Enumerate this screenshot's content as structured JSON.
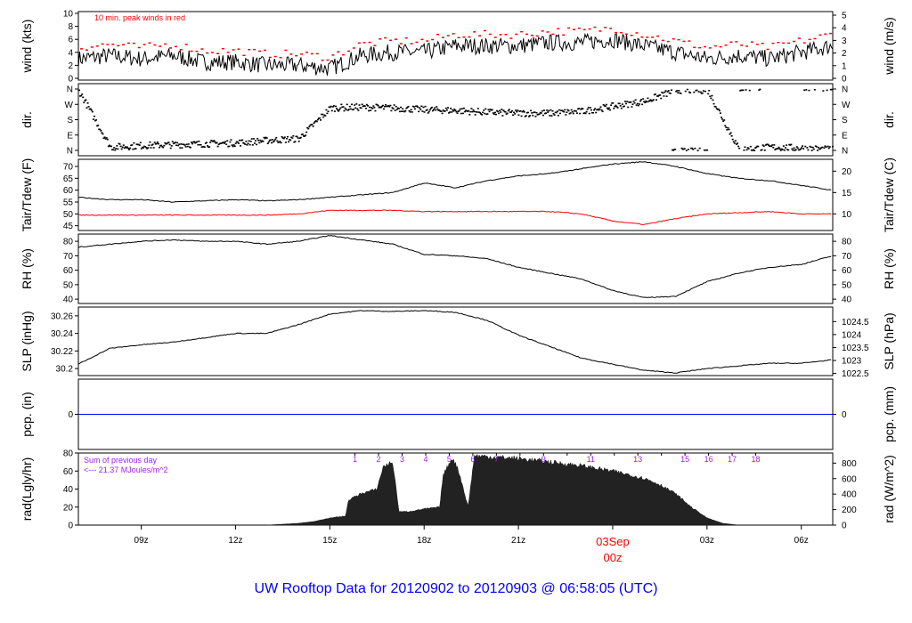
{
  "title": "UW Rooftop Data for 20120902  to  20120903 @ 06:58:05  (UTC)",
  "colors": {
    "line": "#000000",
    "peak": "#ff0000",
    "dew": "#ff0000",
    "pcp": "#0000ff",
    "rad_note": "#a020f0",
    "title": "#0000ff",
    "date_marker": "#ff0000"
  },
  "chart_data": [
    {
      "type": "line",
      "id": "wind",
      "ylabel": "wind (kts)",
      "ylabel_right": "wind (m/s)",
      "annotation": "10 min. peak winds in red",
      "ylim": [
        0,
        10
      ],
      "yticks": [
        0,
        2,
        4,
        6,
        8,
        10
      ],
      "yticks_right": [
        0,
        1,
        2,
        3,
        4,
        5
      ],
      "ylim_right": [
        0,
        5.14
      ],
      "x_hours": [
        7,
        8,
        9,
        10,
        11,
        12,
        13,
        14,
        15,
        16,
        17,
        18,
        19,
        20,
        21,
        22,
        23,
        24,
        25,
        26,
        27,
        28,
        29,
        30,
        31
      ],
      "series": [
        {
          "name": "wind",
          "values": [
            3,
            3.5,
            3,
            3.5,
            2.5,
            2.5,
            2,
            2,
            1.5,
            3.5,
            4,
            4,
            5,
            5,
            5,
            5.5,
            5.5,
            6,
            5,
            4,
            3,
            3.5,
            3,
            4,
            5
          ]
        }
      ],
      "peak_offset_kts": 1.5
    },
    {
      "type": "scatter",
      "id": "dir",
      "ylabel": "dir.",
      "ylabel_right": "dir.",
      "ylim": [
        0,
        360
      ],
      "yticks": [
        0,
        90,
        180,
        270,
        360
      ],
      "ytick_labels": [
        "N",
        "E",
        "S",
        "W",
        "N"
      ],
      "x_hours": [
        7,
        8,
        9,
        10,
        11,
        12,
        13,
        14,
        15,
        16,
        17,
        18,
        19,
        20,
        21,
        22,
        23,
        24,
        25,
        26,
        27,
        28,
        29,
        30,
        31
      ],
      "series": [
        {
          "name": "direction",
          "values": [
            350,
            20,
            30,
            35,
            40,
            45,
            60,
            70,
            250,
            255,
            250,
            240,
            235,
            225,
            220,
            220,
            230,
            260,
            290,
            355,
            355,
            5,
            20,
            15,
            5
          ]
        }
      ]
    },
    {
      "type": "line",
      "id": "temp",
      "ylabel": "Tair/Tdew (F)",
      "ylabel_right": "Tair/Tdew (C)",
      "ylim": [
        43,
        73
      ],
      "yticks": [
        45,
        50,
        55,
        60,
        65,
        70
      ],
      "yticks_right": [
        10,
        15,
        20
      ],
      "x_hours": [
        7,
        8,
        9,
        10,
        11,
        12,
        13,
        14,
        15,
        16,
        17,
        18,
        19,
        20,
        21,
        22,
        23,
        24,
        25,
        26,
        27,
        28,
        29,
        30,
        31
      ],
      "series": [
        {
          "name": "Tair",
          "values": [
            57,
            56,
            56,
            55,
            55.5,
            56,
            55.5,
            56,
            57,
            58,
            59,
            63,
            61,
            64,
            66,
            67,
            69,
            71,
            72,
            70,
            67,
            65,
            64,
            62,
            60
          ]
        },
        {
          "name": "Tdew",
          "values": [
            49.5,
            49.5,
            49.5,
            49.5,
            49.5,
            49.5,
            49.5,
            50,
            51.5,
            51.5,
            51.5,
            51,
            51,
            51,
            51,
            51,
            50,
            47,
            45.5,
            48,
            50,
            50.5,
            51,
            50,
            50
          ]
        }
      ]
    },
    {
      "type": "line",
      "id": "rh",
      "ylabel": "RH (%)",
      "ylabel_right": "RH (%)",
      "ylim": [
        37,
        85
      ],
      "yticks": [
        40,
        50,
        60,
        70,
        80
      ],
      "yticks_right": [
        40,
        50,
        60,
        70,
        80
      ],
      "x_hours": [
        7,
        8,
        9,
        10,
        11,
        12,
        13,
        14,
        15,
        16,
        17,
        18,
        19,
        20,
        21,
        22,
        23,
        24,
        25,
        26,
        27,
        28,
        29,
        30,
        31
      ],
      "series": [
        {
          "name": "RH",
          "values": [
            76,
            78,
            80,
            81,
            80,
            80,
            78,
            80,
            84,
            81,
            78,
            71,
            70,
            68,
            62,
            58,
            54,
            46,
            41,
            42,
            52,
            58,
            62,
            64,
            70
          ]
        }
      ]
    },
    {
      "type": "line",
      "id": "slp",
      "ylabel": "SLP (inHg)",
      "ylabel_right": "SLP (hPa)",
      "ylim": [
        30.192,
        30.27
      ],
      "yticks": [
        30.2,
        30.22,
        30.24,
        30.26
      ],
      "yticks_right": [
        1022.5,
        1023,
        1023.5,
        1024,
        1024.5
      ],
      "x_hours": [
        7,
        8,
        9,
        10,
        11,
        12,
        13,
        14,
        15,
        16,
        17,
        18,
        19,
        20,
        21,
        22,
        23,
        24,
        25,
        26,
        27,
        28,
        29,
        30,
        31
      ],
      "series": [
        {
          "name": "SLP",
          "values": [
            30.205,
            30.223,
            30.227,
            30.23,
            30.235,
            30.24,
            30.24,
            30.25,
            30.262,
            30.266,
            30.265,
            30.266,
            30.264,
            30.255,
            30.238,
            30.225,
            30.212,
            30.205,
            30.198,
            30.195,
            30.2,
            30.203,
            30.206,
            30.206,
            30.21
          ]
        }
      ]
    },
    {
      "type": "line",
      "id": "pcp",
      "ylabel": "pcp. (in)",
      "ylabel_right": "pcp. (mm)",
      "ylim": [
        -1,
        1
      ],
      "yticks": [
        0
      ],
      "yticks_right": [
        0
      ],
      "x_hours": [
        7,
        31
      ],
      "series": [
        {
          "name": "precip",
          "values": [
            0,
            0
          ]
        }
      ]
    },
    {
      "type": "area",
      "id": "rad",
      "ylabel": "rad(Lgly/hr)",
      "ylabel_right": "rad (W/m^2)",
      "ylim": [
        0,
        80
      ],
      "yticks": [
        0,
        20,
        40,
        60,
        80
      ],
      "yticks_right": [
        0,
        200,
        400,
        600,
        800
      ],
      "note_line1": "Sum of previous day",
      "note_line2": "<--- 21.37 MJoules/m^2",
      "hour_marks": [
        "1",
        "2",
        "3",
        "4",
        "5",
        "6",
        "7",
        "",
        "9",
        "",
        "11",
        "",
        "13",
        "",
        "15",
        "16",
        "17",
        "18"
      ],
      "x_hours": [
        13,
        14,
        14.5,
        15,
        15.5,
        15.6,
        16,
        16.5,
        16.7,
        17,
        17.2,
        17.5,
        18,
        18.5,
        18.6,
        18.9,
        19.1,
        19.4,
        19.6,
        20,
        21,
        22,
        23,
        24,
        25,
        25.5,
        26,
        26.5,
        27,
        27.5,
        28
      ],
      "series": [
        {
          "name": "radiation",
          "values": [
            0,
            2,
            4,
            8,
            10,
            28,
            35,
            40,
            65,
            70,
            15,
            15,
            18,
            20,
            55,
            75,
            60,
            20,
            77,
            76,
            74,
            70,
            66,
            60,
            52,
            45,
            35,
            20,
            8,
            2,
            0
          ]
        }
      ]
    }
  ],
  "xaxis": {
    "ticks": [
      {
        "hour": 9,
        "label": "09z"
      },
      {
        "hour": 12,
        "label": "12z"
      },
      {
        "hour": 15,
        "label": "15z"
      },
      {
        "hour": 18,
        "label": "18z"
      },
      {
        "hour": 21,
        "label": "21z"
      },
      {
        "hour": 27,
        "label": "03z"
      },
      {
        "hour": 30,
        "label": "06z"
      }
    ],
    "date_marker": {
      "hour": 24,
      "line1": "03Sep",
      "line2": "00z"
    },
    "range_hours": [
      7,
      31
    ]
  }
}
